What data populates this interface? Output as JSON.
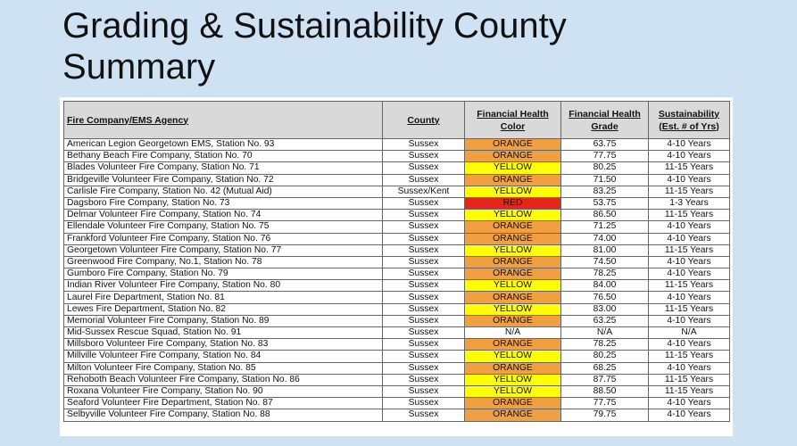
{
  "title_line1": "Grading & Sustainability County",
  "title_line2": "Summary",
  "headers": {
    "agency": "Fire Company/EMS Agency",
    "county": "County",
    "color_l1": "Financial Health",
    "color_l2": "Color",
    "grade_l1": "Financial Health",
    "grade_l2": "Grade",
    "sust_l1": "Sustainability",
    "sust_l2": "(Est. # of Yrs)"
  },
  "colors": {
    "ORANGE": "#f0a040",
    "YELLOW": "#ffff00",
    "RED": "#e8251b"
  },
  "rows": [
    {
      "agency": "American Legion Georgetown EMS, Station No. 93",
      "county": "Sussex",
      "color": "ORANGE",
      "grade": "63.75",
      "years": "4-10 Years"
    },
    {
      "agency": "Bethany Beach Fire Company, Station No. 70",
      "county": "Sussex",
      "color": "ORANGE",
      "grade": "77.75",
      "years": "4-10 Years"
    },
    {
      "agency": "Blades Volunteer Fire Company, Station No. 71",
      "county": "Sussex",
      "color": "YELLOW",
      "grade": "80.25",
      "years": "11-15 Years"
    },
    {
      "agency": "Bridgeville Volunteer Fire Company, Station No. 72",
      "county": "Sussex",
      "color": "ORANGE",
      "grade": "71.50",
      "years": "4-10 Years"
    },
    {
      "agency": "Carlisle Fire Company, Station No. 42 (Mutual Aid)",
      "county": "Sussex/Kent",
      "color": "YELLOW",
      "grade": "83.25",
      "years": "11-15 Years"
    },
    {
      "agency": "Dagsboro Fire Company, Station No. 73",
      "county": "Sussex",
      "color": "RED",
      "grade": "53.75",
      "years": "1-3 Years"
    },
    {
      "agency": "Delmar Volunteer Fire Company, Station No. 74",
      "county": "Sussex",
      "color": "YELLOW",
      "grade": "86.50",
      "years": "11-15 Years"
    },
    {
      "agency": "Ellendale Volunteer Fire Company, Station No. 75",
      "county": "Sussex",
      "color": "ORANGE",
      "grade": "71.25",
      "years": "4-10 Years"
    },
    {
      "agency": "Frankford Volunteer Fire Company, Station No. 76",
      "county": "Sussex",
      "color": "ORANGE",
      "grade": "74.00",
      "years": "4-10 Years"
    },
    {
      "agency": "Georgetown Volunteer Fire Company, Station No. 77",
      "county": "Sussex",
      "color": "YELLOW",
      "grade": "81.00",
      "years": "11-15 Years"
    },
    {
      "agency": "Greenwood Fire Company, No.1, Station No. 78",
      "county": "Sussex",
      "color": "ORANGE",
      "grade": "74.50",
      "years": "4-10 Years"
    },
    {
      "agency": "Gumboro Fire Company, Station No. 79",
      "county": "Sussex",
      "color": "ORANGE",
      "grade": "78.25",
      "years": "4-10 Years"
    },
    {
      "agency": "Indian River Volunteer Fire Company, Station No. 80",
      "county": "Sussex",
      "color": "YELLOW",
      "grade": "84.00",
      "years": "11-15 Years"
    },
    {
      "agency": "Laurel Fire Department, Station No. 81",
      "county": "Sussex",
      "color": "ORANGE",
      "grade": "76.50",
      "years": "4-10 Years"
    },
    {
      "agency": "Lewes Fire Department, Station No. 82",
      "county": "Sussex",
      "color": "YELLOW",
      "grade": "83.00",
      "years": "11-15 Years"
    },
    {
      "agency": "Memorial Volunteer Fire Company, Station No. 89",
      "county": "Sussex",
      "color": "ORANGE",
      "grade": "63.25",
      "years": "4-10 Years"
    },
    {
      "agency": "Mid-Sussex Rescue Squad, Station No. 91",
      "county": "Sussex",
      "color": "N/A",
      "grade": "N/A",
      "years": "N/A"
    },
    {
      "agency": "Millsboro Volunteer Fire Company, Station No. 83",
      "county": "Sussex",
      "color": "ORANGE",
      "grade": "78.25",
      "years": "4-10 Years"
    },
    {
      "agency": "Millville Volunteer Fire Company, Station No. 84",
      "county": "Sussex",
      "color": "YELLOW",
      "grade": "80.25",
      "years": "11-15 Years"
    },
    {
      "agency": "Milton Volunteer Fire Company, Station No. 85",
      "county": "Sussex",
      "color": "ORANGE",
      "grade": "68.25",
      "years": "4-10 Years"
    },
    {
      "agency": "Rehoboth Beach Volunteer Fire Company, Station No. 86",
      "county": "Sussex",
      "color": "YELLOW",
      "grade": "87.75",
      "years": "11-15 Years"
    },
    {
      "agency": "Roxana Volunteer Fire Company, Station No. 90",
      "county": "Sussex",
      "color": "YELLOW",
      "grade": "88.50",
      "years": "11-15 Years"
    },
    {
      "agency": "Seaford Volunteer Fire Department, Station No. 87",
      "county": "Sussex",
      "color": "ORANGE",
      "grade": "77.75",
      "years": "4-10 Years"
    },
    {
      "agency": "Selbyville Volunteer Fire Company, Station No. 88",
      "county": "Sussex",
      "color": "ORANGE",
      "grade": "79.75",
      "years": "4-10 Years"
    }
  ]
}
